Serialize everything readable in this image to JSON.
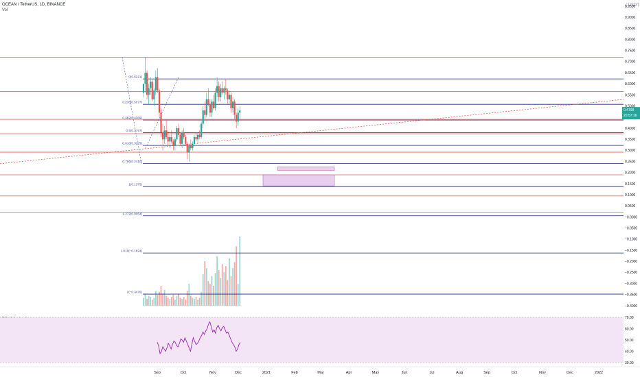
{
  "header": {
    "symbol_line": "OCEAN / TetherUS, 1D, BINANCE",
    "vol_label": "Vol",
    "currency_label": "( USDT",
    "rsi_label": "RSI (14, close)"
  },
  "colors": {
    "up": "#26a69a",
    "down": "#ef5350",
    "hline_red": "#f06767",
    "hline_blue": "#2e2a7a",
    "rsi_line": "#9c27b0",
    "rsi_band": "#f3e5f5",
    "rect_fill": "#e1bee7",
    "trend": "#ef5350",
    "fib_right": "#1a237e",
    "price_badge": "#26a69a"
  },
  "chart_data": {
    "type": "line",
    "title": "OCEAN / TetherUS, 1D, BINANCE",
    "x_ticks": [
      "Sep",
      "Oct",
      "Nov",
      "Dec",
      "2021",
      "Feb",
      "Mar",
      "Apr",
      "May",
      "Jun",
      "Jul",
      "Aug",
      "Sep",
      "Oct",
      "Nov",
      "Dec",
      "2022"
    ],
    "price_ticks": [
      "0.9500",
      "0.9000",
      "0.8500",
      "0.8000",
      "0.7500",
      "0.7000",
      "0.6500",
      "0.6000",
      "0.5500",
      "0.5000",
      "0.4500",
      "0.4000",
      "0.3500",
      "0.3000",
      "0.2500",
      "0.2000",
      "0.1500",
      "0.1000",
      "0.0500",
      "−0.0000",
      "−0.0500",
      "−0.1000",
      "−0.1500",
      "−0.2000",
      "−0.2500",
      "−0.3000",
      "−0.3500",
      "−0.4000"
    ],
    "price_tick_values": [
      0.95,
      0.9,
      0.85,
      0.8,
      0.75,
      0.7,
      0.65,
      0.6,
      0.55,
      0.5,
      0.45,
      0.4,
      0.35,
      0.3,
      0.25,
      0.2,
      0.15,
      0.1,
      0.05,
      0.0,
      -0.05,
      -0.1,
      -0.15,
      -0.2,
      -0.25,
      -0.3,
      -0.35,
      -0.4
    ],
    "y_range": [
      -0.4,
      0.95
    ],
    "current_price": "0.4799",
    "countdown": "20:57:16",
    "current_price_value": 0.4799,
    "fib_levels": [
      {
        "label": "0(0.6221)",
        "value": 0.6221
      },
      {
        "label": "0.236(0.5077)",
        "value": 0.5077
      },
      {
        "label": "0.382(0.4369)",
        "value": 0.4369
      },
      {
        "label": "0.5(0.3797)",
        "value": 0.3797
      },
      {
        "label": "0.618(0.3225)",
        "value": 0.3225
      },
      {
        "label": "0.786(0.2410)",
        "value": 0.241
      },
      {
        "label": "1(0.1373)",
        "value": 0.1373
      },
      {
        "label": "1.272(0.0054)",
        "value": 0.0054
      },
      {
        "label": "1.618(−0.1624)",
        "value": -0.1624
      },
      {
        "label": "2(−0.3476)",
        "value": -0.3476
      }
    ],
    "red_levels": [
      0.72,
      0.565,
      0.44,
      0.375,
      0.292,
      0.19,
      0.095,
      0.022
    ],
    "rectangles": [
      {
        "from": "Dec",
        "to": "Mar",
        "top": 0.225,
        "bottom": 0.21
      },
      {
        "from": "Dec",
        "to": "Mar",
        "top": 0.19,
        "bottom": 0.14
      }
    ],
    "rsi": {
      "label": "RSI (14, close)",
      "ticks": [
        "70.00",
        "60.00",
        "50.00",
        "40.00",
        "30.00"
      ],
      "tick_values": [
        70,
        60,
        50,
        40,
        30
      ],
      "band": [
        30,
        70
      ],
      "values": [
        48,
        45,
        38,
        40,
        44,
        42,
        40,
        43,
        47,
        45,
        42,
        46,
        49,
        48,
        45,
        44,
        47,
        51,
        50,
        48,
        52,
        49,
        46,
        43,
        40,
        46,
        52,
        49,
        46,
        47,
        49,
        52,
        54,
        57,
        55,
        58,
        60,
        64,
        66,
        62,
        57,
        59,
        56,
        61,
        63,
        60,
        58,
        61,
        62,
        59,
        56,
        57,
        54,
        51,
        48,
        46,
        44,
        40,
        42,
        46,
        48
      ]
    },
    "candles": [
      [
        0.56,
        0.6,
        0.54,
        0.6
      ],
      [
        0.6,
        0.72,
        0.56,
        0.65
      ],
      [
        0.65,
        0.66,
        0.53,
        0.55
      ],
      [
        0.55,
        0.6,
        0.51,
        0.58
      ],
      [
        0.58,
        0.63,
        0.55,
        0.61
      ],
      [
        0.61,
        0.62,
        0.52,
        0.53
      ],
      [
        0.53,
        0.58,
        0.5,
        0.57
      ],
      [
        0.57,
        0.66,
        0.55,
        0.63
      ],
      [
        0.63,
        0.67,
        0.56,
        0.57
      ],
      [
        0.57,
        0.58,
        0.45,
        0.47
      ],
      [
        0.47,
        0.49,
        0.36,
        0.38
      ],
      [
        0.38,
        0.42,
        0.3,
        0.35
      ],
      [
        0.35,
        0.41,
        0.33,
        0.39
      ],
      [
        0.39,
        0.44,
        0.35,
        0.36
      ],
      [
        0.36,
        0.39,
        0.32,
        0.34
      ],
      [
        0.34,
        0.37,
        0.31,
        0.36
      ],
      [
        0.36,
        0.39,
        0.33,
        0.34
      ],
      [
        0.34,
        0.35,
        0.3,
        0.32
      ],
      [
        0.32,
        0.36,
        0.3,
        0.35
      ],
      [
        0.35,
        0.41,
        0.34,
        0.4
      ],
      [
        0.4,
        0.42,
        0.36,
        0.37
      ],
      [
        0.37,
        0.38,
        0.32,
        0.33
      ],
      [
        0.33,
        0.39,
        0.31,
        0.38
      ],
      [
        0.38,
        0.4,
        0.35,
        0.36
      ],
      [
        0.36,
        0.37,
        0.32,
        0.33
      ],
      [
        0.33,
        0.34,
        0.26,
        0.29
      ],
      [
        0.29,
        0.33,
        0.25,
        0.32
      ],
      [
        0.32,
        0.35,
        0.3,
        0.31
      ],
      [
        0.31,
        0.34,
        0.3,
        0.33
      ],
      [
        0.33,
        0.37,
        0.32,
        0.36
      ],
      [
        0.36,
        0.38,
        0.34,
        0.35
      ],
      [
        0.35,
        0.38,
        0.33,
        0.37
      ],
      [
        0.37,
        0.39,
        0.35,
        0.36
      ],
      [
        0.36,
        0.43,
        0.35,
        0.42
      ],
      [
        0.42,
        0.5,
        0.4,
        0.48
      ],
      [
        0.48,
        0.52,
        0.44,
        0.46
      ],
      [
        0.46,
        0.56,
        0.45,
        0.53
      ],
      [
        0.53,
        0.58,
        0.5,
        0.51
      ],
      [
        0.51,
        0.53,
        0.45,
        0.47
      ],
      [
        0.47,
        0.53,
        0.45,
        0.52
      ],
      [
        0.52,
        0.55,
        0.48,
        0.49
      ],
      [
        0.49,
        0.58,
        0.48,
        0.56
      ],
      [
        0.56,
        0.63,
        0.54,
        0.59
      ],
      [
        0.59,
        0.61,
        0.52,
        0.54
      ],
      [
        0.54,
        0.6,
        0.52,
        0.58
      ],
      [
        0.58,
        0.61,
        0.55,
        0.56
      ],
      [
        0.56,
        0.59,
        0.53,
        0.58
      ],
      [
        0.58,
        0.62,
        0.55,
        0.57
      ],
      [
        0.57,
        0.58,
        0.51,
        0.53
      ],
      [
        0.53,
        0.57,
        0.51,
        0.55
      ],
      [
        0.55,
        0.56,
        0.47,
        0.49
      ],
      [
        0.49,
        0.54,
        0.47,
        0.52
      ],
      [
        0.52,
        0.53,
        0.44,
        0.46
      ],
      [
        0.46,
        0.47,
        0.4,
        0.43
      ],
      [
        0.43,
        0.49,
        0.41,
        0.47
      ],
      [
        0.47,
        0.5,
        0.44,
        0.48
      ]
    ],
    "volumes": [
      0.08,
      0.12,
      0.07,
      0.1,
      0.09,
      0.06,
      0.08,
      0.15,
      0.11,
      0.14,
      0.2,
      0.12,
      0.16,
      0.1,
      0.08,
      0.07,
      0.09,
      0.11,
      0.06,
      0.1,
      0.12,
      0.08,
      0.07,
      0.09,
      0.06,
      0.15,
      0.22,
      0.1,
      0.08,
      0.07,
      0.09,
      0.06,
      0.08,
      0.14,
      0.32,
      0.45,
      0.38,
      0.25,
      0.22,
      0.3,
      0.2,
      0.33,
      0.5,
      0.36,
      0.28,
      0.42,
      0.34,
      0.4,
      0.26,
      0.48,
      0.3,
      0.38,
      0.44,
      0.6,
      0.22,
      0.7
    ]
  }
}
